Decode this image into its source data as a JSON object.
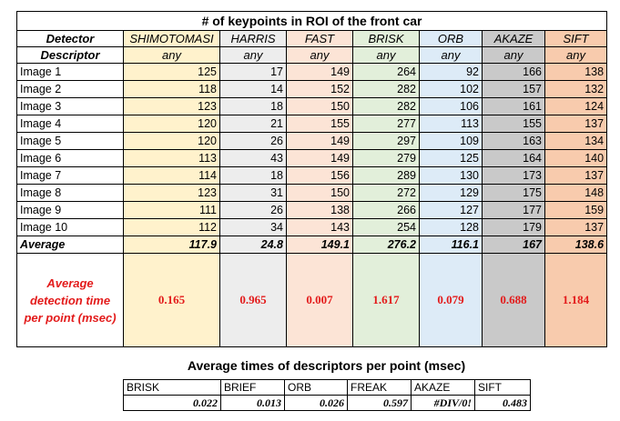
{
  "title": "# of keypoints in ROI of the front car",
  "labels": {
    "detector": "Detector",
    "descriptor": "Descriptor",
    "average": "Average",
    "time_line1": "Average",
    "time_line2": "detection time",
    "time_line3": "per point  (msec)"
  },
  "detectors": [
    {
      "name": "SHIMOTOMASI",
      "descriptor": "any",
      "values": [
        125,
        118,
        123,
        120,
        120,
        113,
        114,
        123,
        111,
        112
      ],
      "average": "117.9",
      "time": "0.165",
      "color": "#fff2cc"
    },
    {
      "name": "HARRIS",
      "descriptor": "any",
      "values": [
        17,
        14,
        18,
        21,
        26,
        43,
        18,
        31,
        26,
        34
      ],
      "average": "24.8",
      "time": "0.965",
      "color": "#ededed"
    },
    {
      "name": "FAST",
      "descriptor": "any",
      "values": [
        149,
        152,
        150,
        155,
        149,
        149,
        156,
        150,
        138,
        143
      ],
      "average": "149.1",
      "time": "0.007",
      "color": "#fce4d6"
    },
    {
      "name": "BRISK",
      "descriptor": "any",
      "values": [
        264,
        282,
        282,
        277,
        297,
        279,
        289,
        272,
        266,
        254
      ],
      "average": "276.2",
      "time": "1.617",
      "color": "#e2efda"
    },
    {
      "name": "ORB",
      "descriptor": "any",
      "values": [
        92,
        102,
        106,
        113,
        109,
        125,
        130,
        129,
        127,
        128
      ],
      "average": "116.1",
      "time": "0.079",
      "color": "#ddebf7"
    },
    {
      "name": "AKAZE",
      "descriptor": "any",
      "values": [
        166,
        157,
        161,
        155,
        163,
        164,
        173,
        175,
        177,
        179
      ],
      "average": "167",
      "time": "0.688",
      "color": "#c9c9c9"
    },
    {
      "name": "SIFT",
      "descriptor": "any",
      "values": [
        138,
        132,
        124,
        137,
        134,
        140,
        137,
        148,
        159,
        137
      ],
      "average": "138.6",
      "time": "1.184",
      "color": "#f8cbad"
    }
  ],
  "images": [
    "Image 1",
    "Image 2",
    "Image 3",
    "Image 4",
    "Image 5",
    "Image 6",
    "Image 7",
    "Image 8",
    "Image 9",
    "Image 10"
  ],
  "descriptor_times": {
    "title": "Average times of descriptors per point (msec)",
    "names": [
      "BRISK",
      "BRIEF",
      "ORB",
      "FREAK",
      "AKAZE",
      "SIFT"
    ],
    "values": [
      "0.022",
      "0.013",
      "0.026",
      "0.597",
      "#DIV/0!",
      "0.483"
    ]
  }
}
